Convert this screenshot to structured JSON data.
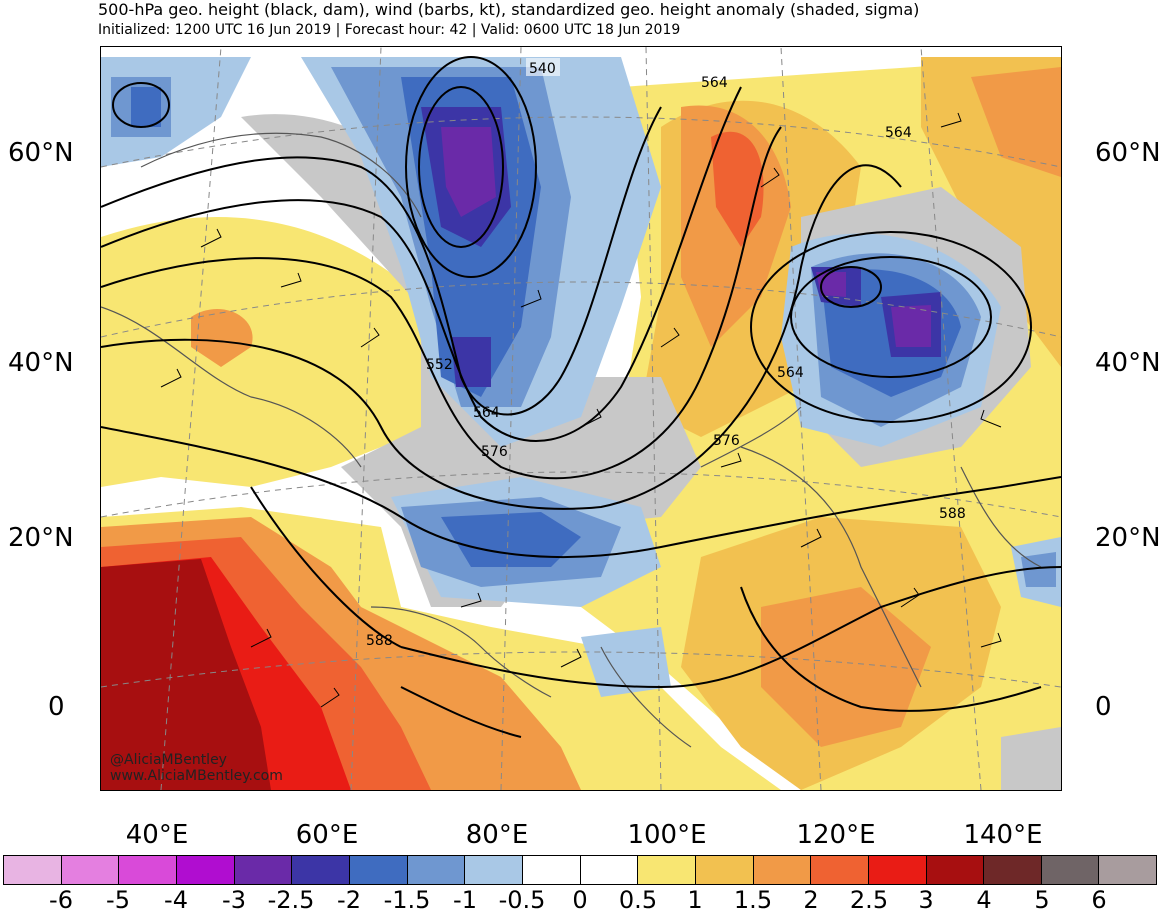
{
  "header": {
    "title": "500-hPa geo. height (black, dam), wind (barbs, kt), standardized geo. height anomaly (shaded, sigma)",
    "subtitle": "Initialized: 1200 UTC 16 Jun 2019 | Forecast hour: 42 | Valid: 0600 UTC 18 Jun 2019"
  },
  "map": {
    "lat_labels": [
      "60°N",
      "40°N",
      "20°N",
      "0"
    ],
    "lon_labels": [
      "40°E",
      "60°E",
      "80°E",
      "100°E",
      "120°E",
      "140°E"
    ],
    "contour_labels": [
      "540",
      "564",
      "564",
      "552",
      "564",
      "576",
      "576",
      "564",
      "588",
      "588"
    ],
    "credit": [
      "@AliciaMBentley",
      "www.AliciaMBentley.com"
    ]
  },
  "colorbar": {
    "ticks": [
      "-6",
      "-5",
      "-4",
      "-3",
      "-2.5",
      "-2",
      "-1.5",
      "-1",
      "-0.5",
      "0",
      "0.5",
      "1",
      "1.5",
      "2",
      "2.5",
      "3",
      "4",
      "5",
      "6"
    ],
    "colors": [
      "#e8b4e3",
      "#e47fe0",
      "#d94ad9",
      "#b00dd0",
      "#6a2aa8",
      "#3c35a6",
      "#3f6cc0",
      "#6f97d0",
      "#a9c8e6",
      "#ffffff",
      "#ffffff",
      "#f8e672",
      "#f2c150",
      "#f19a47",
      "#ef6232",
      "#e91c15",
      "#a70f10",
      "#6e2828",
      "#6f6466",
      "#a89c9e"
    ]
  }
}
